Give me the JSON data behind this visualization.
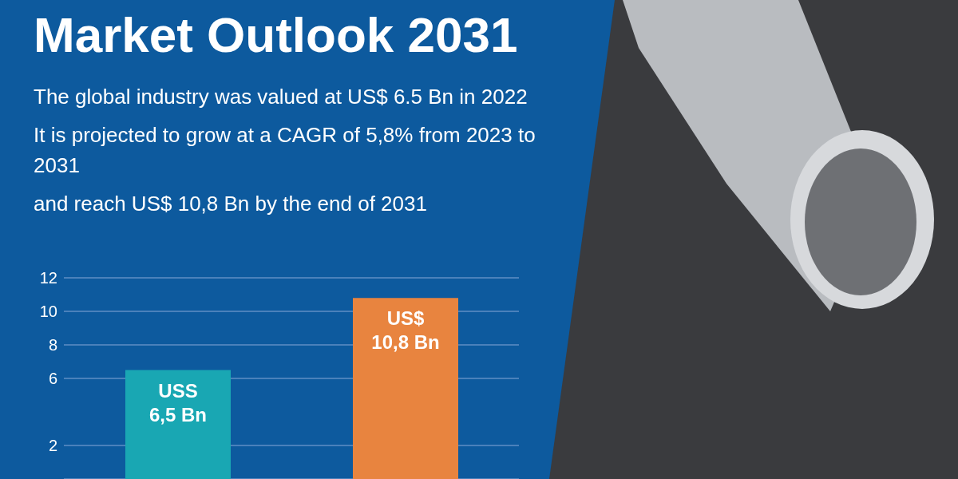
{
  "chart_data": {
    "type": "bar",
    "title": "Market Outlook 2031",
    "annotations": [
      "The global industry was valued at US$ 6.5 Bn in 2022",
      "It is projected to grow at a CAGR of 5,8% from 2023 to 2031",
      "and reach US$ 10,8 Bn by the end of 2031"
    ],
    "categories": [
      null,
      null
    ],
    "values": [
      6.5,
      10.8
    ],
    "colors": [
      "#19a7b3",
      "#e8843f"
    ],
    "value_labels": [
      "USS 6,5 Bn",
      "US$ 10,8 Bn"
    ],
    "ylim": [
      0,
      12
    ],
    "yticks": [
      2,
      6,
      8,
      10,
      12
    ],
    "grid": "y",
    "tick_labels": "y"
  }
}
